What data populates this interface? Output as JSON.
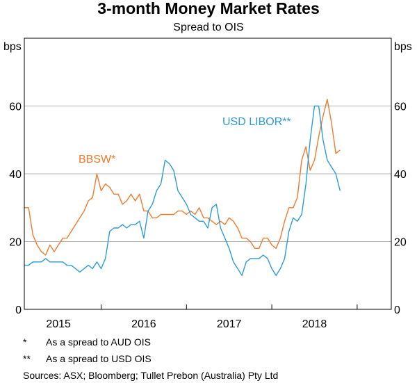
{
  "chart_data": {
    "type": "line",
    "title": "3-month Money Market Rates",
    "subtitle": "Spread to OIS",
    "ylabel_left": "bps",
    "ylabel_right": "bps",
    "ylim": [
      0,
      80
    ],
    "yticks": [
      0,
      20,
      40,
      60
    ],
    "xlim": [
      2014.6,
      2018.9
    ],
    "xticks": [
      {
        "label": "2015",
        "value": 2015.0
      },
      {
        "label": "2016",
        "value": 2016.0
      },
      {
        "label": "2017",
        "value": 2017.0
      },
      {
        "label": "2018",
        "value": 2018.0
      }
    ],
    "year_boundaries": [
      2015.5,
      2016.5,
      2017.5,
      2018.5
    ],
    "grid": true,
    "series": [
      {
        "name": "BBSW*",
        "color": "#f07a2c",
        "x": [
          2014.6,
          2014.65,
          2014.7,
          2014.75,
          2014.8,
          2014.85,
          2014.9,
          2014.95,
          2015.0,
          2015.05,
          2015.1,
          2015.15,
          2015.2,
          2015.25,
          2015.3,
          2015.35,
          2015.4,
          2015.45,
          2015.5,
          2015.55,
          2015.6,
          2015.65,
          2015.7,
          2015.75,
          2015.8,
          2015.85,
          2015.9,
          2015.95,
          2016.0,
          2016.05,
          2016.1,
          2016.15,
          2016.2,
          2016.25,
          2016.3,
          2016.35,
          2016.4,
          2016.45,
          2016.5,
          2016.55,
          2016.6,
          2016.65,
          2016.7,
          2016.75,
          2016.8,
          2016.85,
          2016.9,
          2016.95,
          2017.0,
          2017.05,
          2017.1,
          2017.15,
          2017.2,
          2017.25,
          2017.3,
          2017.35,
          2017.4,
          2017.45,
          2017.5,
          2017.55,
          2017.6,
          2017.65,
          2017.7,
          2017.75,
          2017.8,
          2017.85,
          2017.9,
          2017.95,
          2018.0,
          2018.05,
          2018.1,
          2018.15,
          2018.2,
          2018.25,
          2018.3
        ],
        "values": [
          30,
          30,
          22,
          19,
          17,
          16,
          19,
          17,
          19,
          21,
          21,
          23,
          25,
          27,
          29,
          32,
          33,
          40,
          35,
          37,
          36,
          34,
          34,
          31,
          32,
          34,
          32,
          34,
          29,
          29,
          27,
          27,
          28,
          28,
          28,
          28,
          29,
          29,
          28,
          29,
          28,
          30,
          27,
          27,
          26,
          25,
          26,
          25,
          27,
          26,
          24,
          21,
          21,
          20,
          18,
          18,
          21,
          21,
          19,
          18,
          21,
          26,
          30,
          30,
          33,
          44,
          48,
          41,
          44,
          51,
          57,
          62,
          55,
          46,
          47
        ]
      },
      {
        "name": "USD LIBOR**",
        "color": "#2b9bd8",
        "x": [
          2014.6,
          2014.65,
          2014.7,
          2014.75,
          2014.8,
          2014.85,
          2014.9,
          2014.95,
          2015.0,
          2015.05,
          2015.1,
          2015.15,
          2015.2,
          2015.25,
          2015.3,
          2015.35,
          2015.4,
          2015.45,
          2015.5,
          2015.55,
          2015.6,
          2015.65,
          2015.7,
          2015.75,
          2015.8,
          2015.85,
          2015.9,
          2015.95,
          2016.0,
          2016.05,
          2016.1,
          2016.15,
          2016.2,
          2016.25,
          2016.3,
          2016.35,
          2016.4,
          2016.45,
          2016.5,
          2016.55,
          2016.6,
          2016.65,
          2016.7,
          2016.75,
          2016.8,
          2016.85,
          2016.9,
          2016.95,
          2017.0,
          2017.05,
          2017.1,
          2017.15,
          2017.2,
          2017.25,
          2017.3,
          2017.35,
          2017.4,
          2017.45,
          2017.5,
          2017.55,
          2017.6,
          2017.65,
          2017.7,
          2017.75,
          2017.8,
          2017.85,
          2017.9,
          2017.95,
          2018.0,
          2018.05,
          2018.1,
          2018.15,
          2018.2,
          2018.25,
          2018.3
        ],
        "values": [
          13,
          13,
          14,
          14,
          14,
          15,
          14,
          14,
          14,
          14,
          13,
          13,
          12,
          11,
          12,
          13,
          12,
          14,
          12,
          15,
          23,
          24,
          24,
          25,
          24,
          25,
          25,
          26,
          21,
          29,
          31,
          35,
          37,
          44,
          43,
          41,
          35,
          33,
          31,
          28,
          27,
          26,
          26,
          24,
          30,
          31,
          24,
          21,
          18,
          14,
          12,
          10,
          14,
          15,
          15,
          15,
          16,
          15,
          12,
          10,
          12,
          15,
          23,
          27,
          26,
          28,
          37,
          50,
          60,
          60,
          50,
          44,
          42,
          40,
          35
        ]
      }
    ],
    "labels": {
      "bbsw": "BBSW*",
      "libor": "USD LIBOR**"
    }
  },
  "footnotes": [
    {
      "mark": "*",
      "text": "As a spread to AUD OIS"
    },
    {
      "mark": "**",
      "text": "As a spread to USD OIS"
    }
  ],
  "sources": "Sources: ASX; Bloomberg; Tullet Prebon (Australia) Pty Ltd"
}
